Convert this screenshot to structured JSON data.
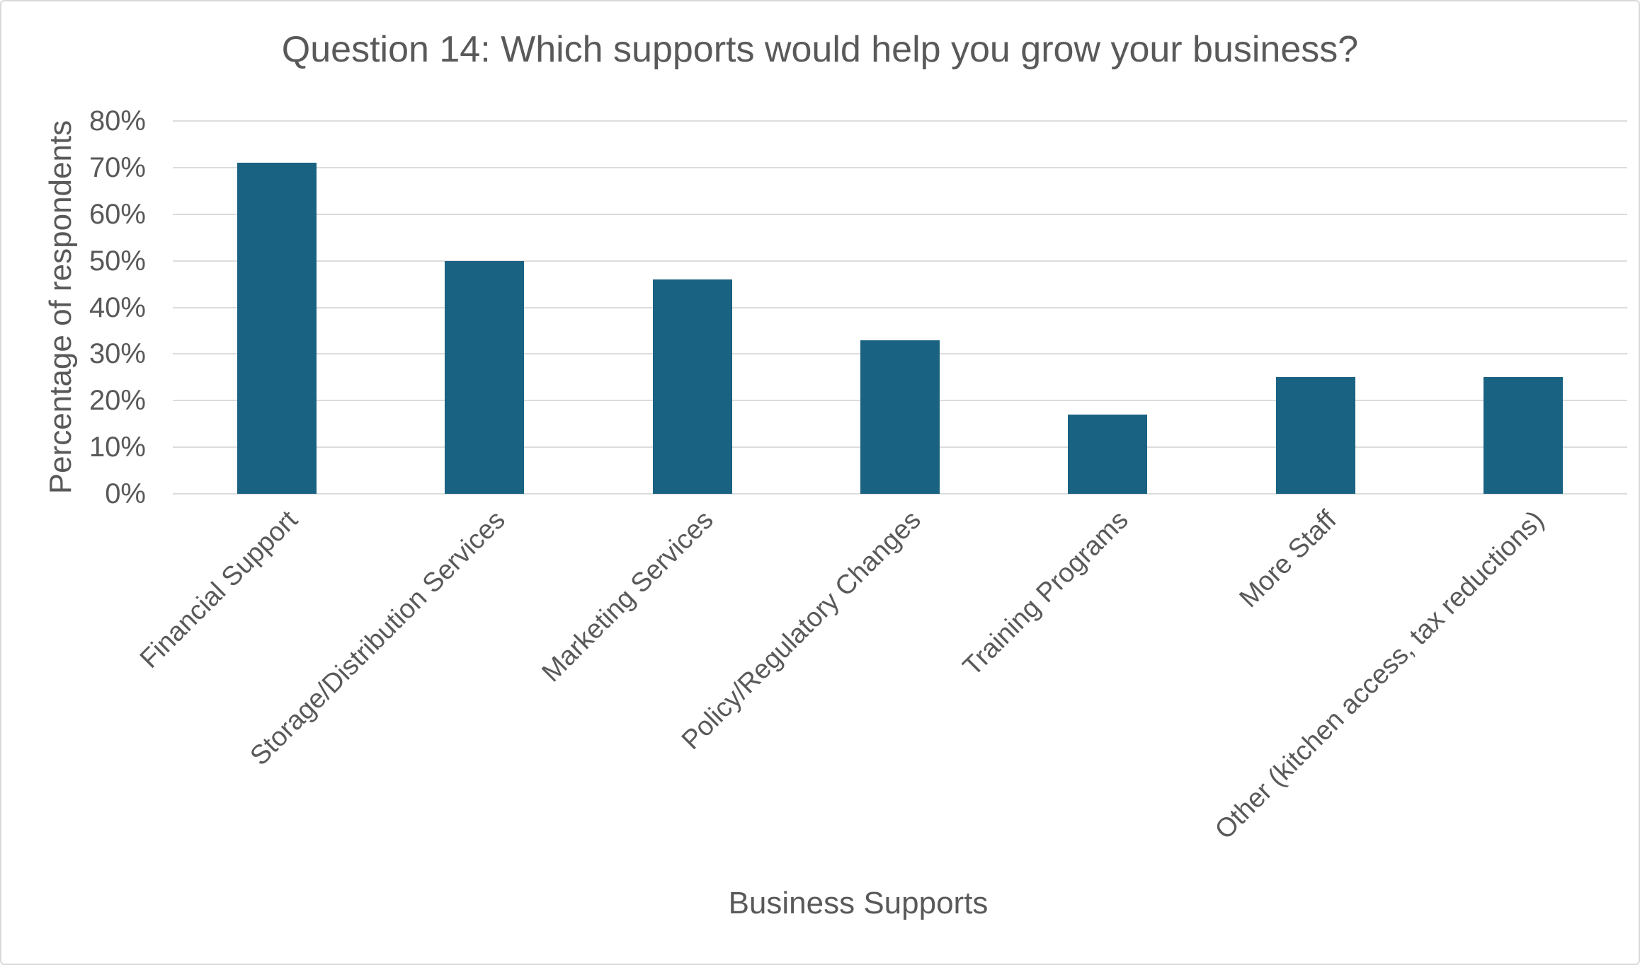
{
  "window": {
    "background": "#ffffff",
    "frame_border_color": "#d9d9d9"
  },
  "chart_data": {
    "type": "bar",
    "title": "Question 14: Which supports would help you grow your business?",
    "xlabel": "Business Supports",
    "ylabel": "Percentage of respondents",
    "categories": [
      "Financial Support",
      "Storage/Distribution Services",
      "Marketing Services",
      "Policy/Regulatory Changes",
      "Training Programs",
      "More Staff",
      "Other (kitchen access, tax reductions)"
    ],
    "values": [
      71,
      50,
      46,
      33,
      17,
      25,
      25
    ],
    "value_unit": "%",
    "ylim": [
      0,
      80
    ],
    "ytick_step": 10,
    "ytick_labels": [
      "0%",
      "10%",
      "20%",
      "30%",
      "40%",
      "50%",
      "60%",
      "70%",
      "80%"
    ],
    "grid": true,
    "legend": false,
    "category_label_rotation_deg": 45,
    "bar_color": "#1A6282",
    "gridline_color": "#DCDCDC",
    "text_color": "#595959"
  }
}
